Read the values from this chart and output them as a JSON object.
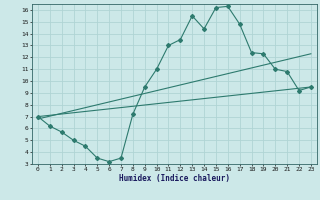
{
  "xlabel": "Humidex (Indice chaleur)",
  "ylabel": "",
  "bg_color": "#cce8e8",
  "line_color": "#2d7a6e",
  "grid_color": "#b0d4d4",
  "xlim": [
    -0.5,
    23.5
  ],
  "ylim": [
    3,
    16.5
  ],
  "xticks": [
    0,
    1,
    2,
    3,
    4,
    5,
    6,
    7,
    8,
    9,
    10,
    11,
    12,
    13,
    14,
    15,
    16,
    17,
    18,
    19,
    20,
    21,
    22,
    23
  ],
  "yticks": [
    3,
    4,
    5,
    6,
    7,
    8,
    9,
    10,
    11,
    12,
    13,
    14,
    15,
    16
  ],
  "main_curve_x": [
    0,
    1,
    2,
    3,
    4,
    5,
    6,
    7,
    8,
    9,
    10,
    11,
    12,
    13,
    14,
    15,
    16,
    17,
    18,
    19,
    20,
    21,
    22,
    23
  ],
  "main_curve_y": [
    7.0,
    6.2,
    5.7,
    5.0,
    4.5,
    3.5,
    3.2,
    3.5,
    7.2,
    9.5,
    11.0,
    13.0,
    13.5,
    15.5,
    14.4,
    16.2,
    16.3,
    14.8,
    12.4,
    12.3,
    11.0,
    10.8,
    9.2,
    9.5
  ],
  "line1_x": [
    0,
    23
  ],
  "line1_y": [
    7.0,
    9.5
  ],
  "line2_x": [
    0,
    23
  ],
  "line2_y": [
    6.8,
    12.3
  ]
}
